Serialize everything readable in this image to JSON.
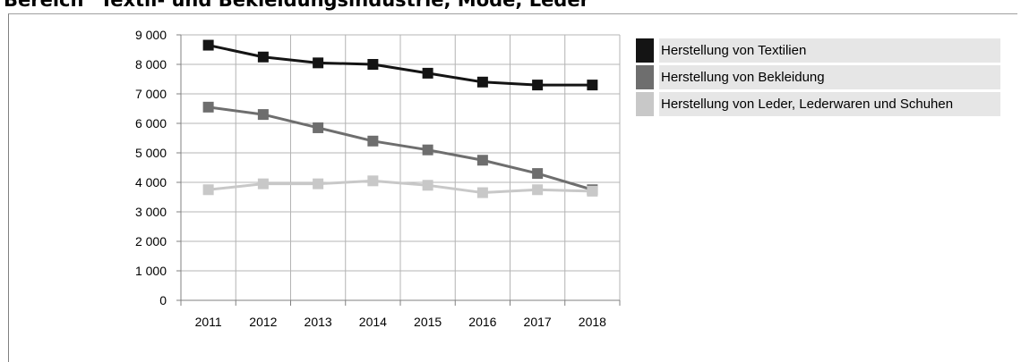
{
  "page": {
    "title": "Bereich \"Textil- und Bekleidungsindustrie, Mode, Leder\""
  },
  "chart_data": {
    "type": "line",
    "title": "",
    "xlabel": "",
    "ylabel": "",
    "x": [
      "2011",
      "2012",
      "2013",
      "2014",
      "2015",
      "2016",
      "2017",
      "2018"
    ],
    "ylim": [
      0,
      9000
    ],
    "yticks": [
      0,
      1000,
      2000,
      3000,
      4000,
      5000,
      6000,
      7000,
      8000,
      9000
    ],
    "ytick_labels": [
      "0",
      "1 000",
      "2 000",
      "3 000",
      "4 000",
      "5 000",
      "6 000",
      "7 000",
      "8 000",
      "9 000"
    ],
    "grid": "both",
    "legend_position": "right",
    "series": [
      {
        "name": "Herstellung von Textilien",
        "color": "#141414",
        "values": [
          8650,
          8250,
          8050,
          8000,
          7700,
          7400,
          7300,
          7300
        ]
      },
      {
        "name": "Herstellung von Bekleidung",
        "color": "#6e6e6e",
        "values": [
          6550,
          6300,
          5850,
          5400,
          5100,
          4750,
          4300,
          3750
        ]
      },
      {
        "name": "Herstellung von Leder, Lederwaren und Schuhen",
        "color": "#c8c8c8",
        "values": [
          3750,
          3950,
          3950,
          4050,
          3900,
          3650,
          3750,
          3700
        ]
      }
    ]
  }
}
